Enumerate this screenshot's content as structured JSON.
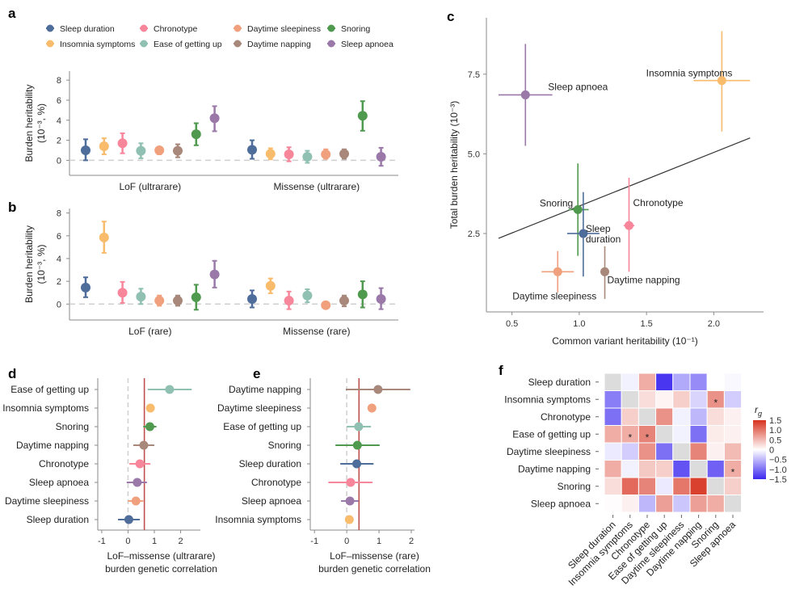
{
  "panel_labels": [
    "a",
    "b",
    "c",
    "d",
    "e",
    "f"
  ],
  "traits": [
    {
      "name": "Sleep duration",
      "color": "#4f6d9b"
    },
    {
      "name": "Insomnia symptoms",
      "color": "#f9bb6c"
    },
    {
      "name": "Chronotype",
      "color": "#f7869b"
    },
    {
      "name": "Ease of getting up",
      "color": "#8fc0b1"
    },
    {
      "name": "Daytime sleepiness",
      "color": "#f0a07c"
    },
    {
      "name": "Daytime napping",
      "color": "#a8887b"
    },
    {
      "name": "Snoring",
      "color": "#4f9a4e"
    },
    {
      "name": "Sleep apnoea",
      "color": "#9a79a9"
    }
  ],
  "chart_data": [
    {
      "type": "scatter",
      "panel": "a",
      "ylabel": [
        "Burden heritability",
        "(10⁻³, %)"
      ],
      "ylim": [
        -1.5,
        8.9
      ],
      "yticks": [
        0,
        2,
        4,
        6,
        8
      ],
      "groups": [
        {
          "label": "LoF (ultrarare)",
          "values": [
            1.0,
            1.4,
            1.7,
            0.95,
            1.0,
            0.95,
            2.6,
            4.2
          ],
          "lower": [
            0,
            0.6,
            0.7,
            0.2,
            0.6,
            0.3,
            1.5,
            2.9
          ],
          "upper": [
            2.1,
            2.2,
            2.7,
            1.7,
            1.3,
            1.6,
            3.7,
            5.4
          ]
        },
        {
          "label": "Missense (ultrarare)",
          "values": [
            1.05,
            0.65,
            0.6,
            0.35,
            0.6,
            0.65,
            4.45,
            0.35
          ],
          "lower": [
            0.15,
            0.1,
            -0.1,
            -0.25,
            0.15,
            0.15,
            2.95,
            -0.55
          ],
          "upper": [
            2.0,
            1.2,
            1.3,
            0.95,
            1.1,
            1.1,
            5.9,
            1.25
          ]
        }
      ]
    },
    {
      "type": "scatter",
      "panel": "b",
      "ylabel": [
        "Burden heritability",
        "(10⁻³, %)"
      ],
      "ylim": [
        -1.4,
        8.4
      ],
      "yticks": [
        0,
        2,
        4,
        6,
        8
      ],
      "groups": [
        {
          "label": "LoF (rare)",
          "values": [
            1.45,
            5.85,
            1.0,
            0.65,
            0.3,
            0.3,
            0.6,
            2.6
          ],
          "lower": [
            0.6,
            4.5,
            0.1,
            0,
            -0.15,
            -0.15,
            -0.5,
            1.45
          ],
          "upper": [
            2.35,
            7.25,
            1.95,
            1.35,
            0.75,
            0.75,
            1.7,
            3.8
          ]
        },
        {
          "label": "Missense (rare)",
          "values": [
            0.45,
            1.6,
            0.3,
            0.75,
            -0.1,
            0.3,
            0.85,
            0.45
          ],
          "lower": [
            -0.3,
            0.95,
            -0.45,
            0.15,
            -0.4,
            -0.2,
            -0.3,
            -0.45
          ],
          "upper": [
            1.2,
            2.25,
            1.1,
            1.3,
            0.2,
            0.75,
            2.0,
            1.4
          ]
        }
      ]
    },
    {
      "type": "scatter",
      "panel": "c",
      "xlabel": "Common variant heritability (10⁻¹)",
      "ylabel": "Total burden heritability (10⁻³)",
      "xlim": [
        0.31,
        2.37
      ],
      "ylim": [
        0.04,
        9.27
      ],
      "xticks": [
        0.5,
        1.0,
        1.5,
        2.0
      ],
      "xtick_labels": [
        "0.5",
        "1.0",
        "1.5",
        "2.0"
      ],
      "yticks": [
        2.5,
        5.0,
        7.5
      ],
      "ytick_labels": [
        "2.5",
        "5.0",
        "7.5"
      ],
      "points": [
        {
          "trait": "Sleep apnoea",
          "label_lines": [
            "Sleep apnoea"
          ],
          "x": 0.6,
          "y": 6.85,
          "x_ci": [
            0.4,
            0.8
          ],
          "y_ci": [
            5.25,
            8.45
          ]
        },
        {
          "trait": "Insomnia symptoms",
          "label_lines": [
            "Insomnia symptoms"
          ],
          "x": 2.06,
          "y": 7.3,
          "x_ci": [
            1.85,
            2.27
          ],
          "y_ci": [
            5.7,
            8.85
          ]
        },
        {
          "trait": "Snoring",
          "label_lines": [
            "Snoring"
          ],
          "x": 0.99,
          "y": 3.25,
          "x_ci": [
            0.92,
            1.07
          ],
          "y_ci": [
            1.8,
            4.7
          ]
        },
        {
          "trait": "Sleep duration",
          "label_lines": [
            "Sleep",
            "duration"
          ],
          "x": 1.03,
          "y": 2.5,
          "x_ci": [
            0.91,
            1.15
          ],
          "y_ci": [
            1.15,
            3.8
          ]
        },
        {
          "trait": "Chronotype",
          "label_lines": [
            "Chronotype"
          ],
          "x": 1.37,
          "y": 2.75,
          "x_ci": [
            1.33,
            1.41
          ],
          "y_ci": [
            1.3,
            4.25
          ]
        },
        {
          "trait": "Daytime sleepiness",
          "label_lines": [
            "Daytime sleepiness"
          ],
          "x": 0.84,
          "y": 1.3,
          "x_ci": [
            0.72,
            0.96
          ],
          "y_ci": [
            0.65,
            1.95
          ]
        },
        {
          "trait": "Daytime napping",
          "label_lines": [
            "Daytime napping"
          ],
          "x": 1.19,
          "y": 1.3,
          "x_ci": [
            1.19,
            1.19
          ],
          "y_ci": [
            0.45,
            2.1
          ]
        }
      ],
      "fit_line": {
        "x": [
          0.4,
          2.27
        ],
        "y": [
          2.35,
          5.5
        ]
      }
    },
    {
      "type": "scatter",
      "panel": "d",
      "xlabel": [
        "LoF–missense (ultrarare)",
        "burden genetic correlation"
      ],
      "xlim": [
        -1.15,
        2.75
      ],
      "xticks": [
        -1,
        0,
        1,
        2
      ],
      "ref_line": 0.62,
      "rows": [
        {
          "trait": "Ease of getting up",
          "value": 1.58,
          "ci": [
            0.75,
            2.42
          ]
        },
        {
          "trait": "Insomnia symptoms",
          "value": 0.85,
          "ci": [
            0.85,
            0.85
          ]
        },
        {
          "trait": "Snoring",
          "value": 0.83,
          "ci": [
            0.58,
            1.08
          ]
        },
        {
          "trait": "Daytime napping",
          "value": 0.6,
          "ci": [
            0.2,
            1.0
          ]
        },
        {
          "trait": "Chronotype",
          "value": 0.45,
          "ci": [
            0.05,
            0.85
          ]
        },
        {
          "trait": "Sleep apnoea",
          "value": 0.35,
          "ci": [
            -0.05,
            0.72
          ]
        },
        {
          "trait": "Daytime sleepiness",
          "value": 0.3,
          "ci": [
            0.0,
            0.58
          ]
        },
        {
          "trait": "Sleep duration",
          "value": 0.03,
          "ci": [
            -0.38,
            0.45
          ]
        }
      ]
    },
    {
      "type": "scatter",
      "panel": "e",
      "xlabel": [
        "LoF–missense (rare)",
        "burden genetic correlation"
      ],
      "xlim": [
        -1.13,
        2.1
      ],
      "xticks": [
        -1,
        0,
        1,
        2
      ],
      "ref_line": 0.38,
      "rows": [
        {
          "trait": "Daytime napping",
          "value": 0.97,
          "ci": [
            -0.03,
            1.97
          ]
        },
        {
          "trait": "Daytime sleepiness",
          "value": 0.78,
          "ci": [
            0.78,
            0.78
          ]
        },
        {
          "trait": "Ease of getting up",
          "value": 0.37,
          "ci": [
            0.0,
            0.75
          ]
        },
        {
          "trait": "Snoring",
          "value": 0.33,
          "ci": [
            -0.35,
            1.02
          ]
        },
        {
          "trait": "Sleep duration",
          "value": 0.31,
          "ci": [
            -0.2,
            0.83
          ]
        },
        {
          "trait": "Chronotype",
          "value": 0.12,
          "ci": [
            -0.57,
            0.8
          ]
        },
        {
          "trait": "Sleep apnoea",
          "value": 0.1,
          "ci": [
            -0.18,
            0.37
          ]
        },
        {
          "trait": "Insomnia symptoms",
          "value": 0.08,
          "ci": [
            0.08,
            0.08
          ]
        }
      ]
    },
    {
      "type": "heatmap",
      "panel": "f",
      "rows": [
        "Sleep duration",
        "Insomnia symptoms",
        "Chronotype",
        "Ease of getting up",
        "Daytime sleepiness",
        "Daytime napping",
        "Snoring",
        "Sleep apnoea"
      ],
      "cols": [
        "Sleep duration",
        "Insomnia symptoms",
        "Chronotype",
        "Ease of getting up",
        "Daytime sleepiness",
        "Daytime napping",
        "Snoring",
        "Sleep apnoea"
      ],
      "values": [
        [
          null,
          -0.1,
          0.6,
          -1.4,
          -0.6,
          -0.8,
          0.0,
          -0.05
        ],
        [
          -0.9,
          null,
          0.25,
          0.08,
          0.35,
          -0.3,
          0.8,
          -0.35
        ],
        [
          -1.0,
          0.35,
          null,
          0.8,
          -0.1,
          -0.5,
          0.25,
          0.1
        ],
        [
          0.6,
          0.6,
          0.9,
          null,
          -0.1,
          -1.0,
          0.15,
          0.1
        ],
        [
          -0.15,
          -0.35,
          0.8,
          -1.0,
          null,
          0.9,
          0.1,
          0.5
        ],
        [
          0.6,
          -0.1,
          0.4,
          0.35,
          -1.2,
          null,
          -1.1,
          0.6
        ],
        [
          0.25,
          1.1,
          0.9,
          -0.15,
          1.0,
          1.4,
          null,
          0.35
        ],
        [
          0.02,
          0.1,
          -0.5,
          0.7,
          -0.4,
          0.7,
          0.6,
          null
        ]
      ],
      "significant": [
        [
          1,
          6
        ],
        [
          3,
          1
        ],
        [
          3,
          2
        ],
        [
          5,
          7
        ]
      ],
      "significance_marker": "*",
      "colorbar": {
        "title": "r",
        "title_sub": "g",
        "range": [
          -1.5,
          1.5
        ],
        "ticks": [
          1.5,
          1.0,
          0.5,
          0,
          -0.5,
          -1.0,
          -1.5
        ],
        "tick_labels": [
          "1.5",
          "1.0",
          "0.5",
          "0",
          "−0.5",
          "−1.0",
          "−1.5"
        ],
        "low_color": "#3c28f0",
        "mid_color": "#ffffff",
        "high_color": "#d7321f",
        "na_color": "#dcdcdc"
      }
    }
  ]
}
